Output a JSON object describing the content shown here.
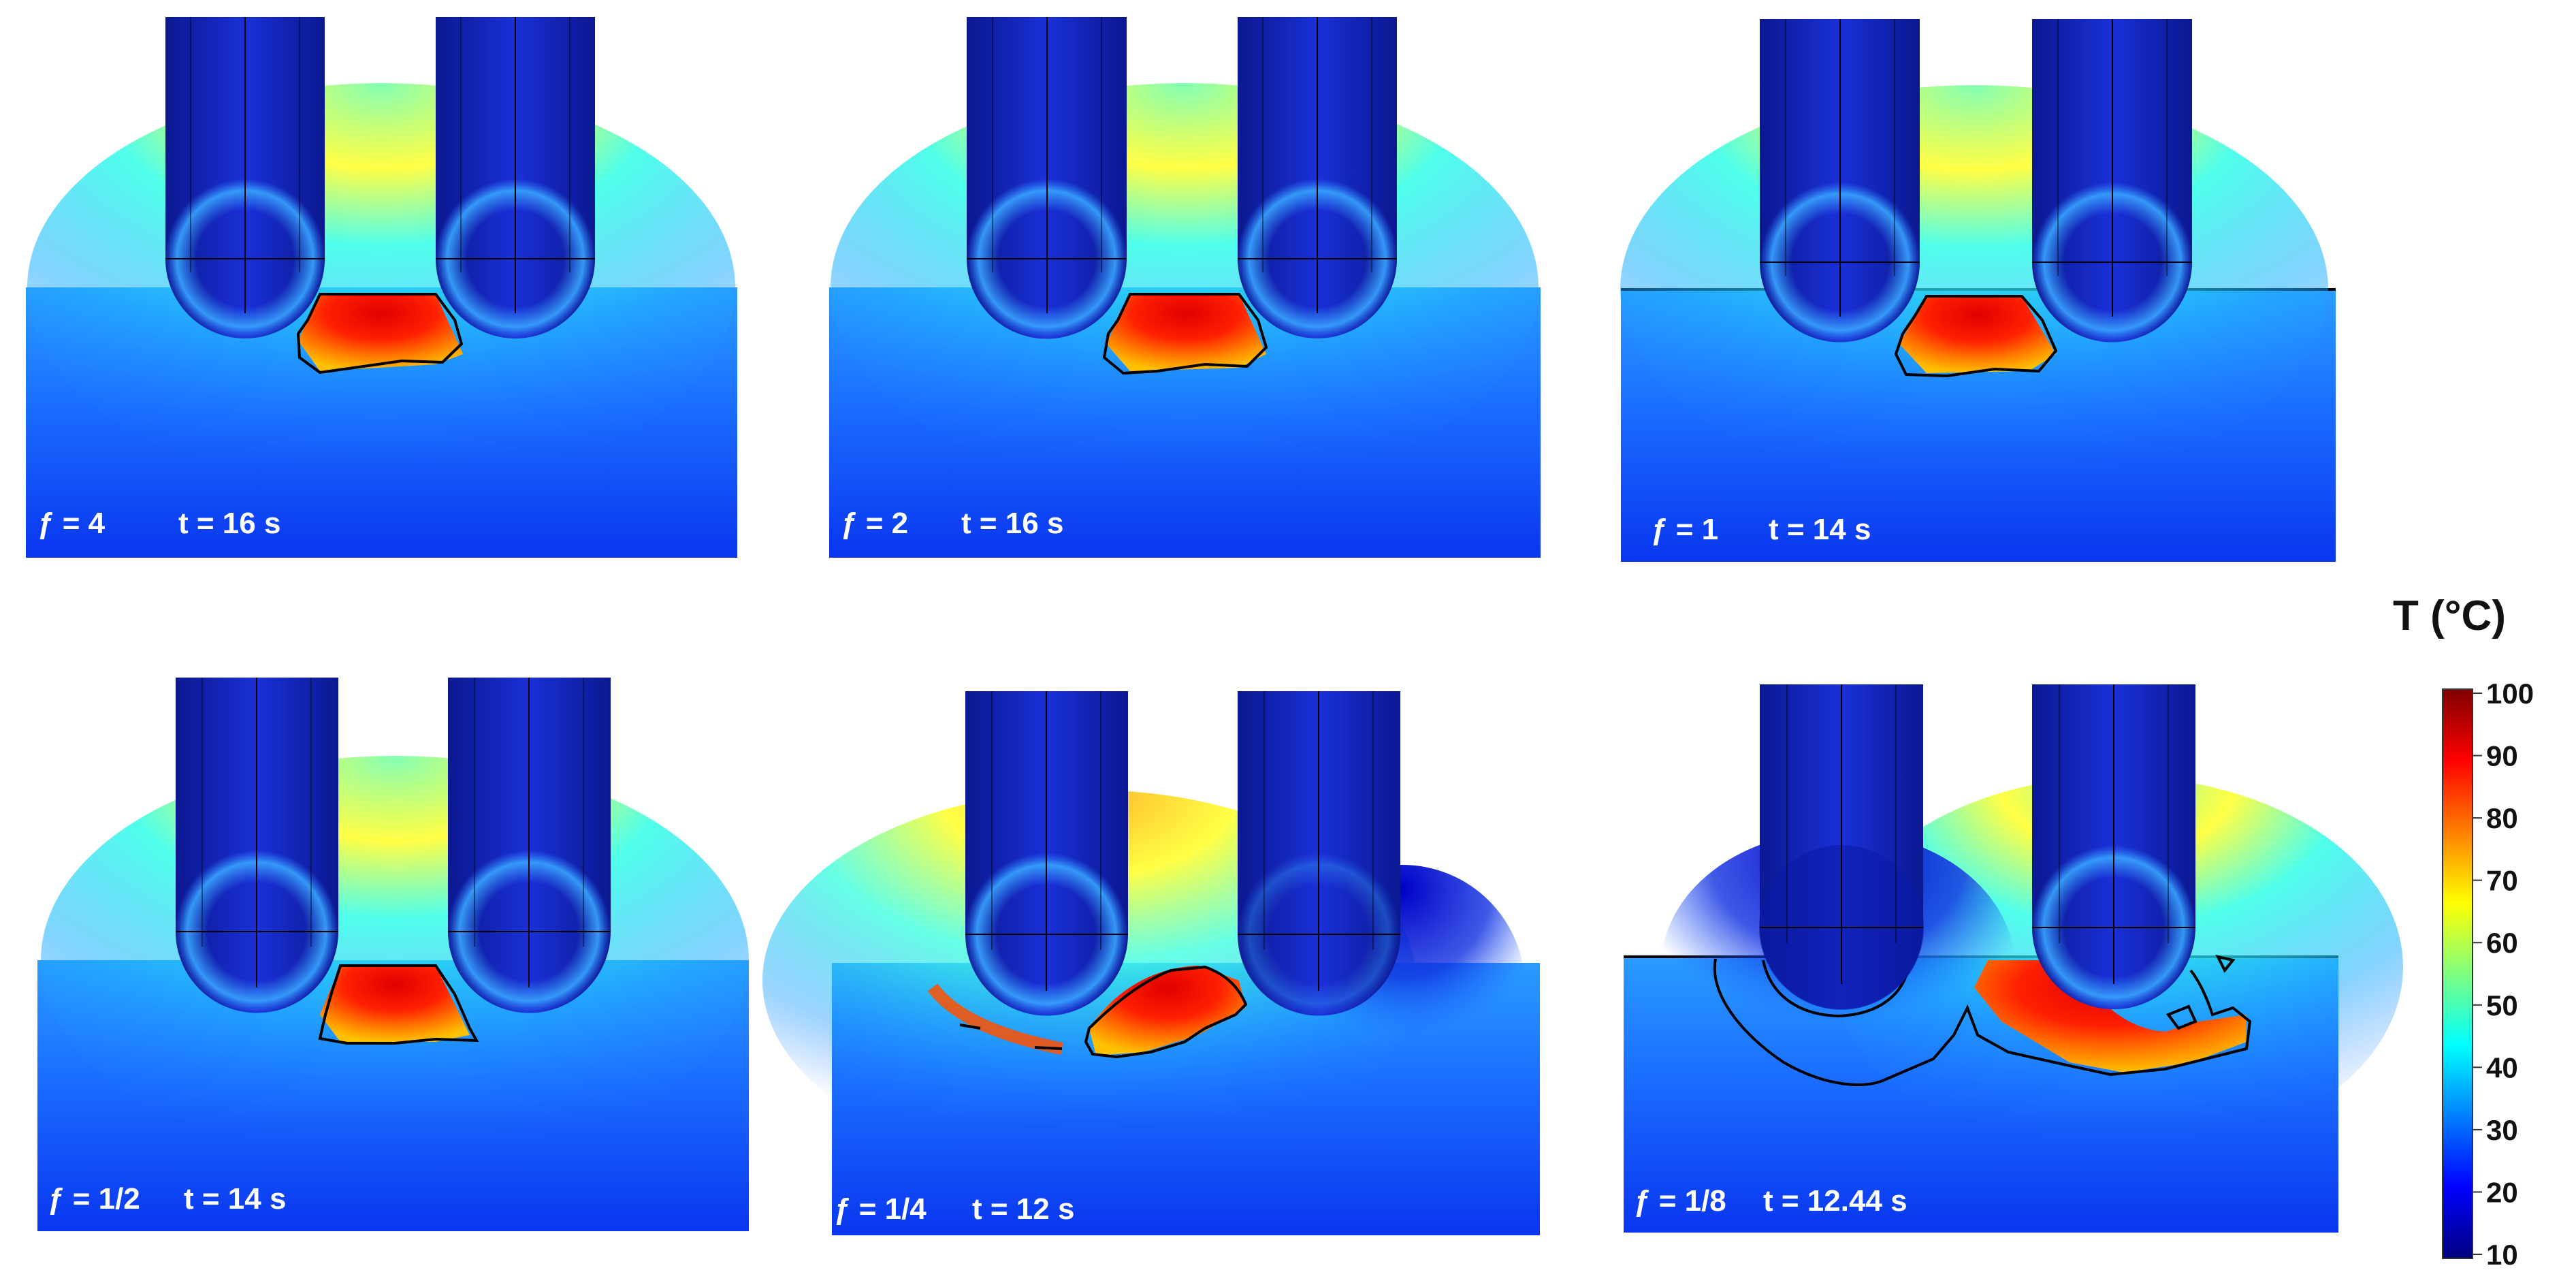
{
  "colorbar": {
    "title": "T (°C)",
    "min": 10,
    "max": 100,
    "ticks": [
      "100",
      "90",
      "80",
      "70",
      "60",
      "50",
      "40",
      "30",
      "20",
      "10"
    ]
  },
  "colormap": {
    "name": "jet",
    "stops": [
      "#00007f",
      "#0000ff",
      "#007fff",
      "#00ffff",
      "#7fff7f",
      "#ffff00",
      "#ff7f00",
      "#ff0000",
      "#7f0000"
    ]
  },
  "panels": [
    {
      "f_label": "ƒ = 4",
      "t_label": "t = 16 s"
    },
    {
      "f_label": "ƒ = 2",
      "t_label": "t = 16 s"
    },
    {
      "f_label": "ƒ = 1",
      "t_label": "t = 14 s"
    },
    {
      "f_label": "ƒ = 1/2",
      "t_label": "t = 14 s"
    },
    {
      "f_label": "ƒ = 1/4",
      "t_label": "t = 12 s"
    },
    {
      "f_label": "ƒ = 1/8",
      "t_label": "t = 12.44 s"
    }
  ]
}
